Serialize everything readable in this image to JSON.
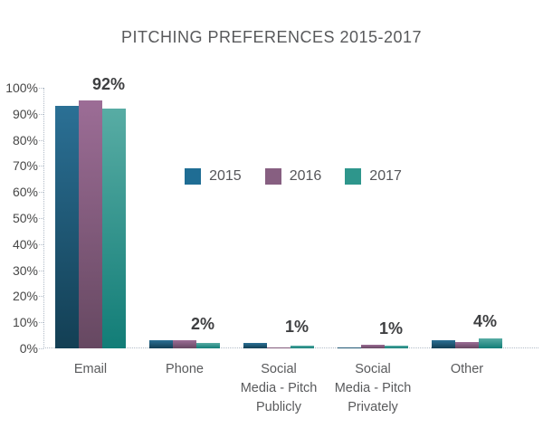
{
  "chart_data": {
    "type": "bar",
    "title": "PITCHING PREFERENCES 2015-2017",
    "categories": [
      "Email",
      "Phone",
      "Social Media - Pitch Publicly",
      "Social Media - Pitch Privately",
      "Other"
    ],
    "category_label_lines": [
      "Email",
      "Phone",
      "Social\nMedia - Pitch\nPublicly",
      "Social\nMedia - Pitch\nPrivately",
      "Other"
    ],
    "series": [
      {
        "name": "2015",
        "color": "#1f6d94",
        "gradient_top": "#2b7095",
        "gradient_bottom": "#133f54",
        "values": [
          93,
          3,
          2,
          0.5,
          3
        ]
      },
      {
        "name": "2016",
        "color": "#875f81",
        "gradient_top": "#9c6d96",
        "gradient_bottom": "#664861",
        "values": [
          95,
          3,
          0.5,
          1.5,
          2.5
        ]
      },
      {
        "name": "2017",
        "color": "#2e968c",
        "gradient_top": "#58aca4",
        "gradient_bottom": "#127d77",
        "values": [
          92,
          2,
          1,
          1,
          4
        ]
      }
    ],
    "data_labels": [
      "92%",
      "2%",
      "1%",
      "1%",
      "4%"
    ],
    "y_ticks": [
      "100%",
      "90%",
      "80%",
      "70%",
      "60%",
      "50%",
      "40%",
      "30%",
      "20%",
      "10%",
      "0%"
    ],
    "ylim": [
      0,
      100
    ],
    "ylabel": "",
    "xlabel": "",
    "legend_position": "center-upper",
    "grid": "dotted axis lines only",
    "axis_dot_color": "#b1bbc7",
    "background_color": "#ffffff"
  }
}
